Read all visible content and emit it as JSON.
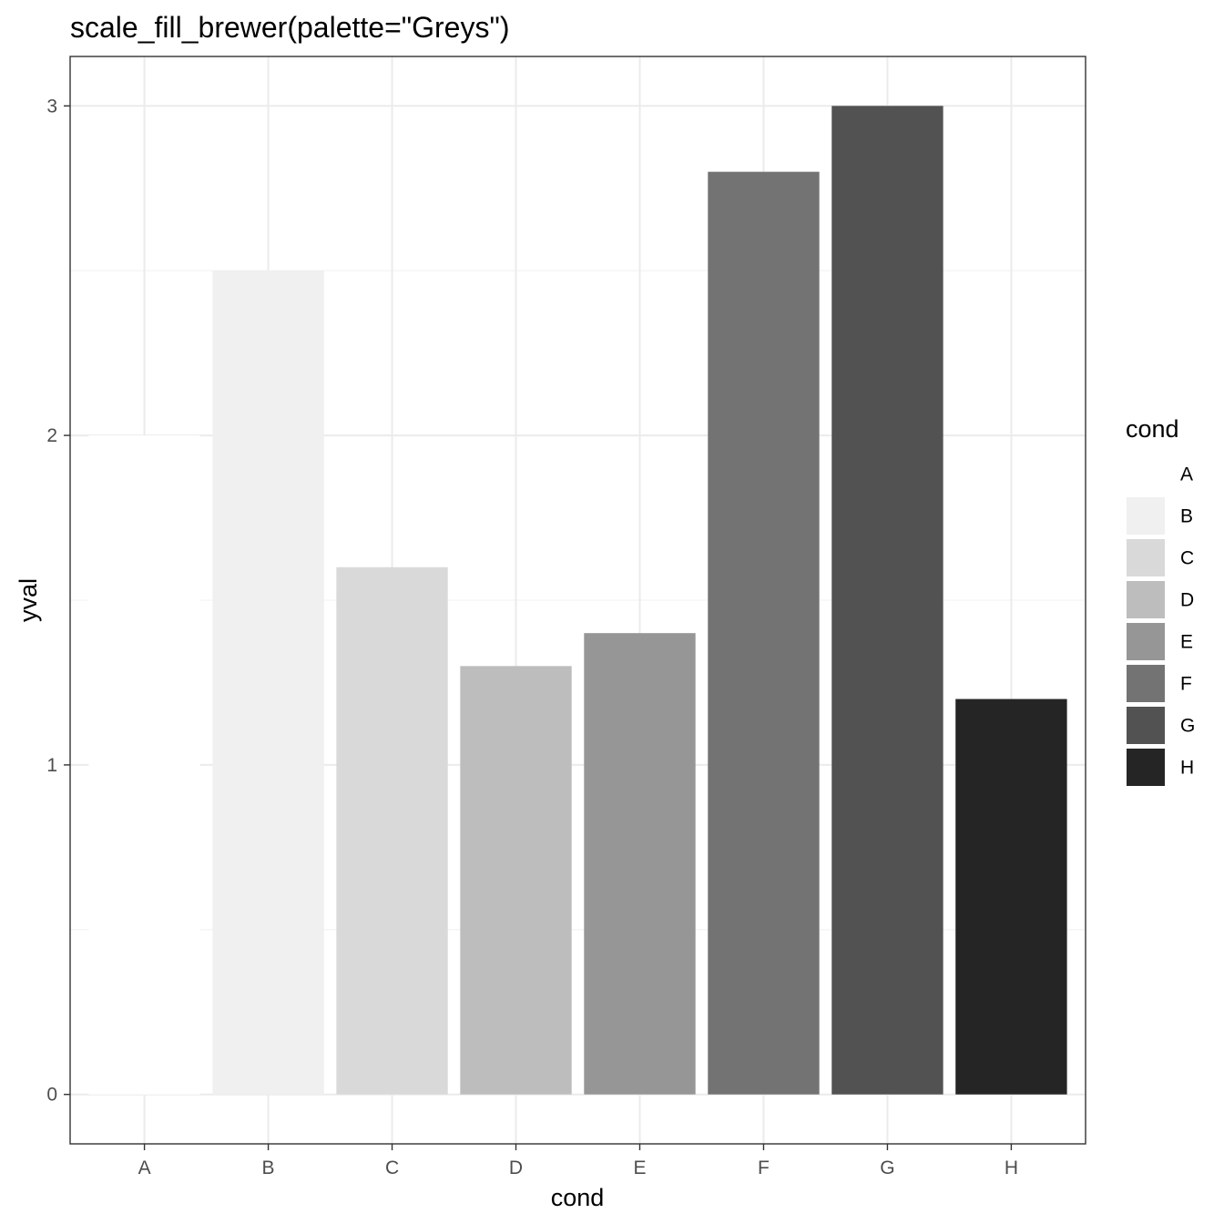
{
  "chart_data": {
    "type": "bar",
    "title": "scale_fill_brewer(palette=\"Greys\")",
    "xlabel": "cond",
    "ylabel": "yval",
    "categories": [
      "A",
      "B",
      "C",
      "D",
      "E",
      "F",
      "G",
      "H"
    ],
    "values": [
      2.0,
      2.5,
      1.6,
      1.3,
      1.4,
      2.8,
      3.0,
      1.2
    ],
    "colors": [
      "#ffffff",
      "#f0f0f0",
      "#d9d9d9",
      "#bdbdbd",
      "#969696",
      "#737373",
      "#525252",
      "#252525"
    ],
    "ylim": [
      -0.15,
      3.15
    ],
    "yticks": [
      0,
      1,
      2,
      3
    ],
    "grid": true,
    "legend": {
      "title": "cond",
      "position": "right",
      "items": [
        "A",
        "B",
        "C",
        "D",
        "E",
        "F",
        "G",
        "H"
      ]
    }
  }
}
